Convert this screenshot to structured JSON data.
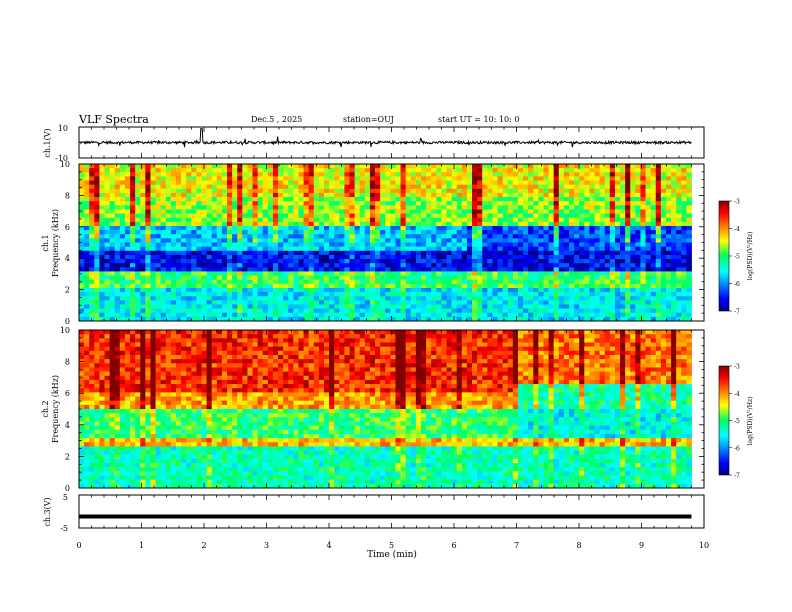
{
  "header": {
    "title": "VLF Spectra",
    "date": "Dec.5 , 2025",
    "station": "station=OUJ",
    "start": "start UT = 10: 10: 0"
  },
  "chart_data": [
    {
      "type": "line",
      "panel": "ch1-waveform",
      "ylabel": "ch.1(V)",
      "yticks": [
        "10",
        "-10"
      ],
      "ylim": [
        -10,
        10
      ],
      "xlim": [
        0,
        10
      ]
    },
    {
      "type": "heatmap",
      "panel": "ch1-spectrogram",
      "ylabel": "ch.1\nFrequency (kHz)",
      "ylabel_lines": [
        "ch.1",
        "Frequency (kHz)"
      ],
      "yticks": [
        "0",
        "2",
        "4",
        "6",
        "8",
        "10"
      ],
      "ylim": [
        0,
        10
      ],
      "xlim": [
        0,
        9.8
      ],
      "colorbar": {
        "label": "log(PSD)(V²/Hz)",
        "ticks": [
          "-3",
          "-4",
          "-5",
          "-6",
          "-7"
        ],
        "range": [
          -7,
          -3
        ]
      }
    },
    {
      "type": "heatmap",
      "panel": "ch2-spectrogram",
      "ylabel": "ch.2\nFrequency (kHz)",
      "ylabel_lines": [
        "ch.2",
        "Frequency (kHz)"
      ],
      "yticks": [
        "0",
        "2",
        "4",
        "6",
        "8",
        "10"
      ],
      "ylim": [
        0,
        10
      ],
      "xlim": [
        0,
        9.8
      ],
      "colorbar": {
        "label": "log(PSD)(V²/Hz)",
        "ticks": [
          "-3",
          "-4",
          "-5",
          "-6",
          "-7"
        ],
        "range": [
          -7,
          -3
        ]
      }
    },
    {
      "type": "line",
      "panel": "ch3-waveform",
      "ylabel": "ch.3(V)",
      "yticks": [
        "5",
        "-5"
      ],
      "ylim": [
        -5,
        5
      ],
      "xlim": [
        0,
        10
      ],
      "level": -1.5
    }
  ],
  "xaxis": {
    "label": "Time (min)",
    "ticks": [
      "0",
      "1",
      "2",
      "3",
      "4",
      "5",
      "6",
      "7",
      "8",
      "9",
      "10"
    ],
    "range": [
      0,
      10
    ]
  }
}
